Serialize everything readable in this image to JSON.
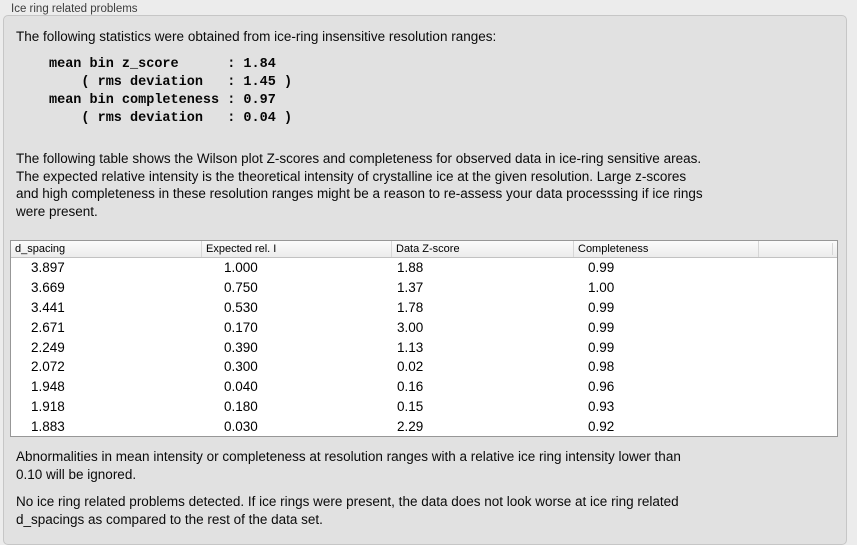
{
  "panel": {
    "title": "Ice ring related problems"
  },
  "intro": "The following statistics were obtained from ice-ring insensitive resolution ranges:",
  "stats_block": "mean bin z_score      : 1.84\n    ( rms deviation   : 1.45 )\nmean bin completeness : 0.97\n    ( rms deviation   : 0.04 )",
  "stats": {
    "mean_bin_z_score": "1.84",
    "z_score_rms_deviation": "1.45",
    "mean_bin_completeness": "0.97",
    "completeness_rms_deviation": "0.04"
  },
  "description": "The following table shows the Wilson plot Z-scores and completeness for observed data in ice-ring sensitive areas.\nThe expected relative intensity is the theoretical intensity of crystalline ice at the given resolution. Large z-scores\nand high completeness in these resolution ranges might be a reason to re-assess your data processsing if ice rings\nwere present.",
  "table": {
    "headers": [
      "d_spacing",
      "Expected rel. I",
      "Data Z-score",
      "Completeness",
      ""
    ],
    "rows": [
      [
        "3.897",
        "1.000",
        "1.88",
        "0.99"
      ],
      [
        "3.669",
        "0.750",
        "1.37",
        "1.00"
      ],
      [
        "3.441",
        "0.530",
        "1.78",
        "0.99"
      ],
      [
        "2.671",
        "0.170",
        "3.00",
        "0.99"
      ],
      [
        "2.249",
        "0.390",
        "1.13",
        "0.99"
      ],
      [
        "2.072",
        "0.300",
        "0.02",
        "0.98"
      ],
      [
        "1.948",
        "0.040",
        "0.16",
        "0.96"
      ],
      [
        "1.918",
        "0.180",
        "0.15",
        "0.93"
      ],
      [
        "1.883",
        "0.030",
        "2.29",
        "0.92"
      ]
    ]
  },
  "footnote": "Abnormalities in mean intensity or completeness at resolution ranges with a relative ice ring intensity lower than\n0.10 will be ignored.",
  "conclusion": "No ice ring related problems detected. If ice rings were present, the data does not look worse at ice ring related\nd_spacings as compared to the rest of the data set.",
  "colors": {
    "page_background": "#ececec",
    "groupbox_background": "#e1e1e1",
    "table_border": "#979797",
    "table_background": "#ffffff"
  }
}
